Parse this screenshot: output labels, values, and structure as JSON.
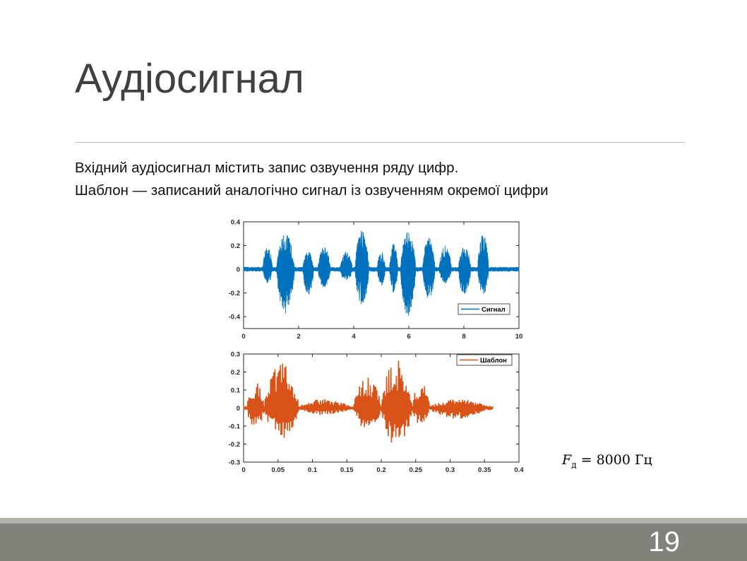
{
  "slide": {
    "title": "Аудіосигнал",
    "lines": [
      "Вхідний аудіосигнал містить запис озвучення ряду цифр.",
      "Шаблон — записаний аналогічно сигнал із озвученням окремої цифри"
    ],
    "fs_symbol": "F",
    "fs_subscript": "д",
    "fs_rest": " = 8000 Гц",
    "page_number": "19"
  },
  "chart_data": [
    {
      "type": "line",
      "series": [
        {
          "name": "Сигнал",
          "color": "#0072bd"
        }
      ],
      "xlim": [
        0,
        10
      ],
      "ylim": [
        -0.5,
        0.4
      ],
      "xticks": [
        "0",
        "2",
        "4",
        "6",
        "8",
        "10"
      ],
      "yticks": [
        "0.4",
        "0.2",
        "0",
        "-0.2",
        "-0.4"
      ],
      "legend_position": "bottom-right",
      "noise_amplitude": 0.02,
      "bursts": [
        {
          "start": 0.7,
          "end": 1.05,
          "pos": 0.2,
          "neg": -0.12
        },
        {
          "start": 1.2,
          "end": 1.85,
          "pos": 0.3,
          "neg": -0.38
        },
        {
          "start": 2.15,
          "end": 2.55,
          "pos": 0.15,
          "neg": -0.22
        },
        {
          "start": 2.7,
          "end": 3.15,
          "pos": 0.2,
          "neg": -0.16
        },
        {
          "start": 3.5,
          "end": 3.95,
          "pos": 0.15,
          "neg": -0.1
        },
        {
          "start": 4.05,
          "end": 4.55,
          "pos": 0.34,
          "neg": -0.3
        },
        {
          "start": 4.85,
          "end": 5.15,
          "pos": 0.15,
          "neg": -0.14
        },
        {
          "start": 5.3,
          "end": 5.6,
          "pos": 0.22,
          "neg": -0.2
        },
        {
          "start": 5.7,
          "end": 6.25,
          "pos": 0.32,
          "neg": -0.4
        },
        {
          "start": 6.5,
          "end": 6.95,
          "pos": 0.27,
          "neg": -0.25
        },
        {
          "start": 7.1,
          "end": 7.55,
          "pos": 0.2,
          "neg": -0.12
        },
        {
          "start": 7.8,
          "end": 8.25,
          "pos": 0.2,
          "neg": -0.22
        },
        {
          "start": 8.5,
          "end": 8.9,
          "pos": 0.3,
          "neg": -0.22
        }
      ]
    },
    {
      "type": "line",
      "series": [
        {
          "name": "Шаблон",
          "color": "#d95319"
        }
      ],
      "xlim": [
        0,
        0.4
      ],
      "ylim": [
        -0.3,
        0.3
      ],
      "xticks": [
        "0",
        "0.05",
        "0.1",
        "0.15",
        "0.2",
        "0.25",
        "0.3",
        "0.35",
        "0.4"
      ],
      "yticks": [
        "0.3",
        "0.2",
        "0.1",
        "0",
        "-0.1",
        "-0.2",
        "-0.3"
      ],
      "legend_position": "top-right",
      "x_end": 0.362,
      "bursts": [
        {
          "start": 0.005,
          "end": 0.03,
          "pos": 0.15,
          "neg": -0.12
        },
        {
          "start": 0.03,
          "end": 0.08,
          "pos": 0.25,
          "neg": -0.17
        },
        {
          "start": 0.08,
          "end": 0.155,
          "pos": 0.05,
          "neg": -0.04
        },
        {
          "start": 0.16,
          "end": 0.2,
          "pos": 0.18,
          "neg": -0.12
        },
        {
          "start": 0.2,
          "end": 0.245,
          "pos": 0.27,
          "neg": -0.21
        },
        {
          "start": 0.245,
          "end": 0.27,
          "pos": 0.15,
          "neg": -0.1
        },
        {
          "start": 0.27,
          "end": 0.355,
          "pos": 0.05,
          "neg": -0.06
        }
      ]
    }
  ]
}
